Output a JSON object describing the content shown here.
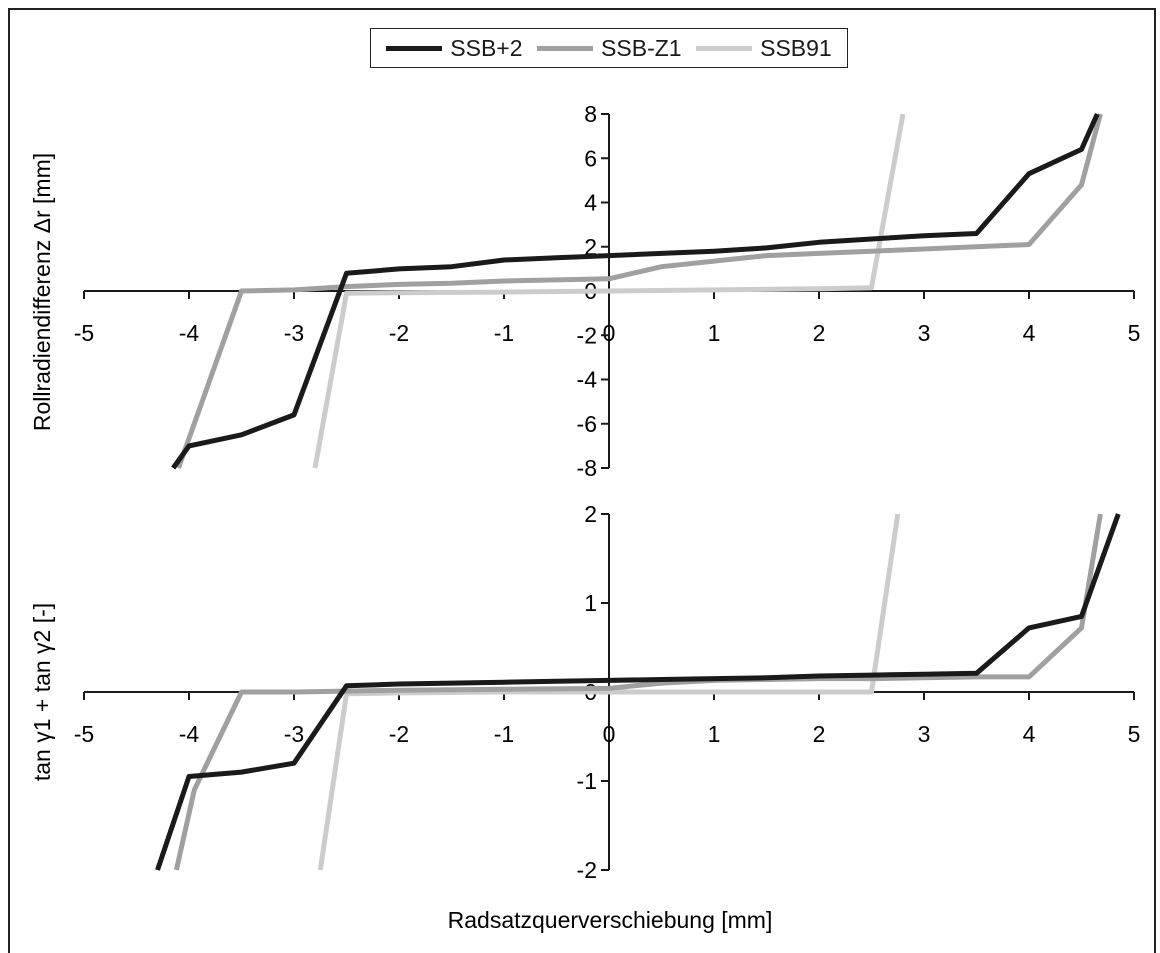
{
  "legend": {
    "items": [
      {
        "label": "SSB+2",
        "color": "#1a1a1a"
      },
      {
        "label": "SSB-Z1",
        "color": "#a0a0a0"
      },
      {
        "label": "SSB91",
        "color": "#cccccc"
      }
    ]
  },
  "chart_data": [
    {
      "type": "line",
      "ylabel": "Rollradiendifferenz Δr [mm]",
      "xlabel": "",
      "xlim": [
        -5,
        5
      ],
      "ylim": [
        -8,
        8
      ],
      "xticks": [
        "-5",
        "-4",
        "-3",
        "-2",
        "-1",
        "0",
        "1",
        "2",
        "3",
        "4",
        "5"
      ],
      "yticks": [
        "-8",
        "-6",
        "-4",
        "-2",
        "0",
        "2",
        "4",
        "6",
        "8"
      ],
      "series": [
        {
          "name": "SSB+2",
          "color": "#1a1a1a",
          "x": [
            -4.15,
            -4.0,
            -3.5,
            -3.0,
            -2.5,
            -2.0,
            -1.5,
            -1.0,
            -0.5,
            0.0,
            0.5,
            1.0,
            1.5,
            2.0,
            2.5,
            3.0,
            3.5,
            4.0,
            4.5,
            4.65
          ],
          "y": [
            -8.0,
            -7.0,
            -6.5,
            -5.6,
            0.8,
            1.0,
            1.1,
            1.4,
            1.5,
            1.6,
            1.7,
            1.8,
            1.95,
            2.2,
            2.35,
            2.5,
            2.6,
            5.3,
            6.4,
            8.0
          ]
        },
        {
          "name": "SSB-Z1",
          "color": "#a0a0a0",
          "x": [
            -4.1,
            -3.5,
            -3.0,
            -2.5,
            -2.0,
            -1.5,
            -1.0,
            -0.5,
            0.0,
            0.5,
            1.0,
            1.5,
            2.0,
            2.5,
            3.0,
            3.5,
            4.0,
            4.5,
            4.68
          ],
          "y": [
            -8.0,
            0.0,
            0.05,
            0.2,
            0.3,
            0.35,
            0.45,
            0.5,
            0.55,
            1.1,
            1.35,
            1.6,
            1.7,
            1.8,
            1.9,
            2.0,
            2.1,
            4.8,
            8.0
          ]
        },
        {
          "name": "SSB91",
          "color": "#cccccc",
          "x": [
            -2.8,
            -2.5,
            -2.0,
            -1.0,
            0.0,
            1.0,
            2.0,
            2.5,
            2.8
          ],
          "y": [
            -8.0,
            -0.1,
            -0.08,
            -0.05,
            0.0,
            0.05,
            0.1,
            0.15,
            8.0
          ]
        }
      ]
    },
    {
      "type": "line",
      "ylabel": "tan γ1 + tan γ2 [-]",
      "xlabel": "Radsatzquerverschiebung [mm]",
      "xlim": [
        -5,
        5
      ],
      "ylim": [
        -2,
        2
      ],
      "xticks": [
        "-5",
        "-4",
        "-3",
        "-2",
        "-1",
        "0",
        "1",
        "2",
        "3",
        "4",
        "5"
      ],
      "yticks": [
        "-2",
        "-1",
        "0",
        "1",
        "2"
      ],
      "series": [
        {
          "name": "SSB+2",
          "color": "#1a1a1a",
          "x": [
            -4.3,
            -4.0,
            -3.5,
            -3.0,
            -2.5,
            -2.0,
            -1.5,
            -1.0,
            -0.5,
            0.0,
            0.5,
            1.0,
            1.5,
            2.0,
            2.5,
            3.0,
            3.5,
            4.0,
            4.5,
            4.85
          ],
          "y": [
            -2.0,
            -0.95,
            -0.9,
            -0.8,
            0.07,
            0.09,
            0.1,
            0.11,
            0.12,
            0.13,
            0.14,
            0.15,
            0.16,
            0.18,
            0.19,
            0.2,
            0.21,
            0.72,
            0.85,
            2.0
          ]
        },
        {
          "name": "SSB-Z1",
          "color": "#a0a0a0",
          "x": [
            -4.12,
            -3.95,
            -3.5,
            -3.0,
            -2.5,
            -2.0,
            -1.0,
            0.0,
            0.5,
            1.0,
            1.5,
            2.0,
            2.5,
            3.0,
            3.5,
            4.0,
            4.5,
            4.68
          ],
          "y": [
            -2.0,
            -1.1,
            0.0,
            0.0,
            0.01,
            0.02,
            0.03,
            0.04,
            0.1,
            0.13,
            0.14,
            0.15,
            0.15,
            0.16,
            0.17,
            0.17,
            0.72,
            2.0
          ]
        },
        {
          "name": "SSB91",
          "color": "#cccccc",
          "x": [
            -2.75,
            -2.5,
            -2.0,
            -1.0,
            0.0,
            1.0,
            2.0,
            2.5,
            2.75
          ],
          "y": [
            -2.0,
            -0.02,
            -0.01,
            0.0,
            0.0,
            0.0,
            0.0,
            0.0,
            2.0
          ]
        }
      ]
    }
  ]
}
